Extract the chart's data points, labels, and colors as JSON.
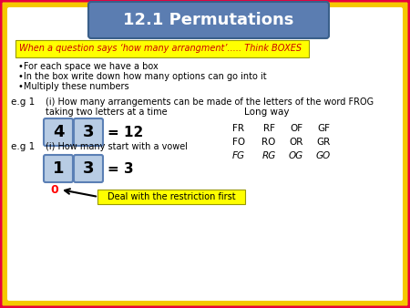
{
  "title": "12.1 Permutations",
  "title_bg": "#5b7db1",
  "title_color": "white",
  "outer_border_color": "#e8003d",
  "inner_border_color": "#f5c800",
  "background_color": "#f5c800",
  "yellow_box_text": "When a question says ‘how many arrangment’..... Think BOXES",
  "yellow_box_bg": "#ffff00",
  "bullet_lines": [
    "•For each space we have a box",
    "•In the box write down how many options can go into it",
    "•Multiply these numbers"
  ],
  "eg1_label": "e.g 1",
  "eg1_question": "(i) How many arrangements can be made of the letters of the word FROG",
  "eg1_question2": "taking two letters at a time",
  "long_way": "Long way",
  "box1a": "4",
  "box1b": "3",
  "eq1": "= 12",
  "long_way_rows": [
    [
      "FR",
      "RF",
      "OF",
      "GF"
    ],
    [
      "FO",
      "RO",
      "OR",
      "GR"
    ],
    [
      "FG",
      "RG",
      "OG",
      "GO"
    ]
  ],
  "long_way_italic_row": 2,
  "eg2_label": "e.g 1",
  "eg2_question": "(i) How many start with a vowel",
  "box2a": "1",
  "box2b": "3",
  "eq2": "= 3",
  "zero_label": "0",
  "arrow_label": "Deal with the restriction first",
  "box_color": "#b8cce4",
  "box_border_color": "#5a7fb5"
}
